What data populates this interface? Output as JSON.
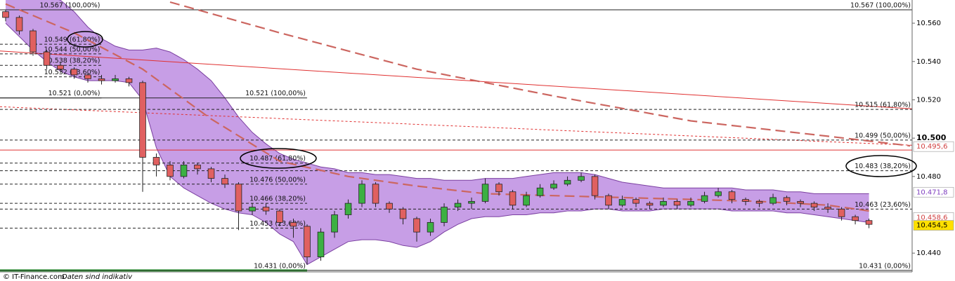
{
  "chart_data": {
    "type": "candlestick",
    "source": "© IT-Finance.com",
    "note": "Daten sind indikativ",
    "xlim": [
      -0.41,
      66.15
    ],
    "ylim": [
      10.4302,
      10.5721
    ],
    "yticks": [
      {
        "value": 10.44,
        "label": "10.440"
      },
      {
        "value": 10.48,
        "label": "10.480"
      },
      {
        "value": 10.5,
        "label": "10.500"
      },
      {
        "value": 10.52,
        "label": "10.520"
      },
      {
        "value": 10.54,
        "label": "10.540"
      },
      {
        "value": 10.56,
        "label": "10.560"
      }
    ],
    "up_color": "#3cb043",
    "down_color": "#e06060",
    "candles": [
      [
        10.566,
        10.567,
        10.561,
        10.563
      ],
      [
        10.563,
        10.564,
        10.554,
        10.556
      ],
      [
        10.556,
        10.557,
        10.543,
        10.545
      ],
      [
        10.545,
        10.546,
        10.536,
        10.538
      ],
      [
        10.538,
        10.54,
        10.534,
        10.536
      ],
      [
        10.536,
        10.537,
        10.531,
        10.533
      ],
      [
        10.533,
        10.534,
        10.529,
        10.531
      ],
      [
        10.531,
        10.533,
        10.528,
        10.53
      ],
      [
        10.53,
        10.533,
        10.529,
        10.531
      ],
      [
        10.531,
        10.532,
        10.527,
        10.529
      ],
      [
        10.529,
        10.53,
        10.472,
        10.49
      ],
      [
        10.49,
        10.492,
        10.48,
        10.486
      ],
      [
        10.486,
        10.488,
        10.478,
        10.48
      ],
      [
        10.48,
        10.488,
        10.479,
        10.486
      ],
      [
        10.486,
        10.487,
        10.481,
        10.484
      ],
      [
        10.484,
        10.485,
        10.477,
        10.479
      ],
      [
        10.479,
        10.481,
        10.474,
        10.476
      ],
      [
        10.476,
        10.477,
        10.452,
        10.462
      ],
      [
        10.462,
        10.466,
        10.46,
        10.464
      ],
      [
        10.464,
        10.466,
        10.46,
        10.462
      ],
      [
        10.462,
        10.463,
        10.454,
        10.456
      ],
      [
        10.456,
        10.458,
        10.448,
        10.454
      ],
      [
        10.454,
        10.455,
        10.434,
        10.438
      ],
      [
        10.438,
        10.453,
        10.436,
        10.451
      ],
      [
        10.451,
        10.462,
        10.448,
        10.46
      ],
      [
        10.46,
        10.468,
        10.458,
        10.466
      ],
      [
        10.466,
        10.478,
        10.464,
        10.476
      ],
      [
        10.476,
        10.477,
        10.464,
        10.466
      ],
      [
        10.466,
        10.467,
        10.461,
        10.463
      ],
      [
        10.463,
        10.464,
        10.455,
        10.458
      ],
      [
        10.458,
        10.459,
        10.446,
        10.451
      ],
      [
        10.451,
        10.458,
        10.449,
        10.456
      ],
      [
        10.456,
        10.466,
        10.454,
        10.464
      ],
      [
        10.464,
        10.468,
        10.462,
        10.466
      ],
      [
        10.466,
        10.469,
        10.463,
        10.467
      ],
      [
        10.467,
        10.479,
        10.466,
        10.476
      ],
      [
        10.476,
        10.477,
        10.47,
        10.472
      ],
      [
        10.472,
        10.473,
        10.463,
        10.465
      ],
      [
        10.465,
        10.472,
        10.464,
        10.47
      ],
      [
        10.47,
        10.476,
        10.469,
        10.474
      ],
      [
        10.474,
        10.478,
        10.473,
        10.476
      ],
      [
        10.476,
        10.48,
        10.475,
        10.478
      ],
      [
        10.478,
        10.482,
        10.477,
        10.48
      ],
      [
        10.48,
        10.481,
        10.468,
        10.47
      ],
      [
        10.47,
        10.471,
        10.463,
        10.465
      ],
      [
        10.465,
        10.47,
        10.464,
        10.468
      ],
      [
        10.468,
        10.469,
        10.464,
        10.466
      ],
      [
        10.466,
        10.467,
        10.463,
        10.465
      ],
      [
        10.465,
        10.469,
        10.464,
        10.467
      ],
      [
        10.467,
        10.468,
        10.463,
        10.465
      ],
      [
        10.465,
        10.469,
        10.464,
        10.467
      ],
      [
        10.467,
        10.472,
        10.466,
        10.47
      ],
      [
        10.47,
        10.474,
        10.469,
        10.472
      ],
      [
        10.472,
        10.473,
        10.466,
        10.468
      ],
      [
        10.468,
        10.469,
        10.465,
        10.467
      ],
      [
        10.467,
        10.468,
        10.464,
        10.466
      ],
      [
        10.466,
        10.471,
        10.465,
        10.469
      ],
      [
        10.469,
        10.47,
        10.465,
        10.467
      ],
      [
        10.467,
        10.468,
        10.464,
        10.466
      ],
      [
        10.466,
        10.467,
        10.462,
        10.464
      ],
      [
        10.464,
        10.466,
        10.461,
        10.463
      ],
      [
        10.463,
        10.464,
        10.457,
        10.459
      ],
      [
        10.459,
        10.46,
        10.455,
        10.457
      ],
      [
        10.457,
        10.458,
        10.453,
        10.455
      ]
    ],
    "bollinger": {
      "color": "#7a3fa0",
      "fill": "#b47ede",
      "upper": [
        10.58,
        10.578,
        10.576,
        10.574,
        10.572,
        10.566,
        10.558,
        10.552,
        10.548,
        10.546,
        10.546,
        10.547,
        10.545,
        10.541,
        10.536,
        10.53,
        10.521,
        10.511,
        10.503,
        10.497,
        10.492,
        10.489,
        10.487,
        10.485,
        10.484,
        10.482,
        10.482,
        10.481,
        10.481,
        10.48,
        10.479,
        10.479,
        10.478,
        10.478,
        10.478,
        10.479,
        10.479,
        10.479,
        10.48,
        10.481,
        10.482,
        10.482,
        10.482,
        10.481,
        10.479,
        10.477,
        10.476,
        10.475,
        10.474,
        10.474,
        10.474,
        10.474,
        10.474,
        10.474,
        10.473,
        10.473,
        10.473,
        10.472,
        10.472,
        10.471,
        10.471,
        10.471,
        10.471,
        10.471
      ],
      "lower": [
        10.56,
        10.553,
        10.546,
        10.54,
        10.535,
        10.532,
        10.53,
        10.53,
        10.53,
        10.529,
        10.52,
        10.495,
        10.48,
        10.474,
        10.47,
        10.466,
        10.463,
        10.461,
        10.46,
        10.456,
        10.45,
        10.446,
        10.434,
        10.438,
        10.442,
        10.446,
        10.447,
        10.447,
        10.446,
        10.444,
        10.443,
        10.446,
        10.451,
        10.455,
        10.458,
        10.459,
        10.459,
        10.46,
        10.46,
        10.461,
        10.461,
        10.462,
        10.462,
        10.463,
        10.463,
        10.462,
        10.462,
        10.462,
        10.463,
        10.463,
        10.463,
        10.463,
        10.463,
        10.462,
        10.462,
        10.462,
        10.462,
        10.461,
        10.461,
        10.46,
        10.459,
        10.458,
        10.457,
        10.456
      ]
    },
    "moving_averages": [
      {
        "color": "#cc6660",
        "x": [
          12,
          20,
          30,
          40,
          50,
          60,
          66
        ],
        "values": [
          10.571,
          10.555,
          10.536,
          10.522,
          10.509,
          10.501,
          10.496
        ]
      },
      {
        "color": "#cc6660",
        "x": [
          0,
          5,
          10,
          15,
          20,
          25,
          30,
          35,
          40,
          45,
          50,
          55,
          60,
          63
        ],
        "values": [
          10.57,
          10.555,
          10.536,
          10.51,
          10.488,
          10.48,
          10.475,
          10.471,
          10.47,
          10.469,
          10.468,
          10.467,
          10.465,
          10.462
        ]
      }
    ],
    "trendlines": [
      {
        "color": "#e03030",
        "style": "solid",
        "x": [
          -0.41,
          66.15
        ],
        "values": [
          10.5455,
          10.5153
        ]
      },
      {
        "color": "#e03030",
        "style": "dotted",
        "x": [
          -0.41,
          66.15
        ],
        "values": [
          10.5164,
          10.4963
        ]
      },
      {
        "color": "#e03030",
        "style": "solid",
        "x": [
          -0.41,
          66.15
        ],
        "values": [
          10.4938,
          10.4938
        ]
      }
    ],
    "fib_sets": [
      {
        "x": [
          -0.41,
          7
        ],
        "levels": [
          {
            "value": 10.567,
            "label": "10.567 (100,00%)"
          },
          {
            "value": 10.549,
            "label": "10.549 (61,80%)"
          },
          {
            "value": 10.544,
            "label": "10.544 (50,00%)"
          },
          {
            "value": 10.538,
            "label": "10.538 (38,20%)"
          },
          {
            "value": 10.532,
            "label": "10.532 (23,60%)"
          },
          {
            "value": 10.521,
            "label": "10.521 (0,00%)"
          }
        ]
      },
      {
        "x": [
          -0.41,
          22
        ],
        "levels": [
          {
            "value": 10.521,
            "label": "10.521 (100,00%)"
          },
          {
            "value": 10.487,
            "label": "10.487 (61,80%)"
          },
          {
            "value": 10.476,
            "label": "10.476 (50,00%)"
          },
          {
            "value": 10.466,
            "label": "10.466 (38,20%)"
          },
          {
            "value": 10.453,
            "label": "10.453 (23,60%)"
          },
          {
            "value": 10.431,
            "label": "10.431 (0,00%)"
          }
        ]
      },
      {
        "x": [
          -0.41,
          66.15
        ],
        "levels": [
          {
            "value": 10.567,
            "label": "10.567 (100,00%)"
          },
          {
            "value": 10.515,
            "label": "10.515 (61,80%)"
          },
          {
            "value": 10.499,
            "label": "10.499 (50,00%)"
          },
          {
            "value": 10.483,
            "label": "10.483 (38,20%)"
          },
          {
            "value": 10.463,
            "label": "10.463 (23,60%)"
          },
          {
            "value": 10.431,
            "label": "10.431 (0,00%)"
          }
        ]
      }
    ],
    "price_tags": [
      {
        "value": 10.4956,
        "label": "10.495,6",
        "bg": "#ffffff",
        "color": "#d04040"
      },
      {
        "value": 10.4718,
        "label": "10.471,8",
        "bg": "#ffffff",
        "color": "#8040c0"
      },
      {
        "value": 10.4586,
        "label": "10.458,6",
        "bg": "#ffffff",
        "color": "#d04040"
      },
      {
        "value": 10.4545,
        "label": "10.454,5",
        "bg": "#ffe000",
        "color": "#000000"
      }
    ]
  }
}
